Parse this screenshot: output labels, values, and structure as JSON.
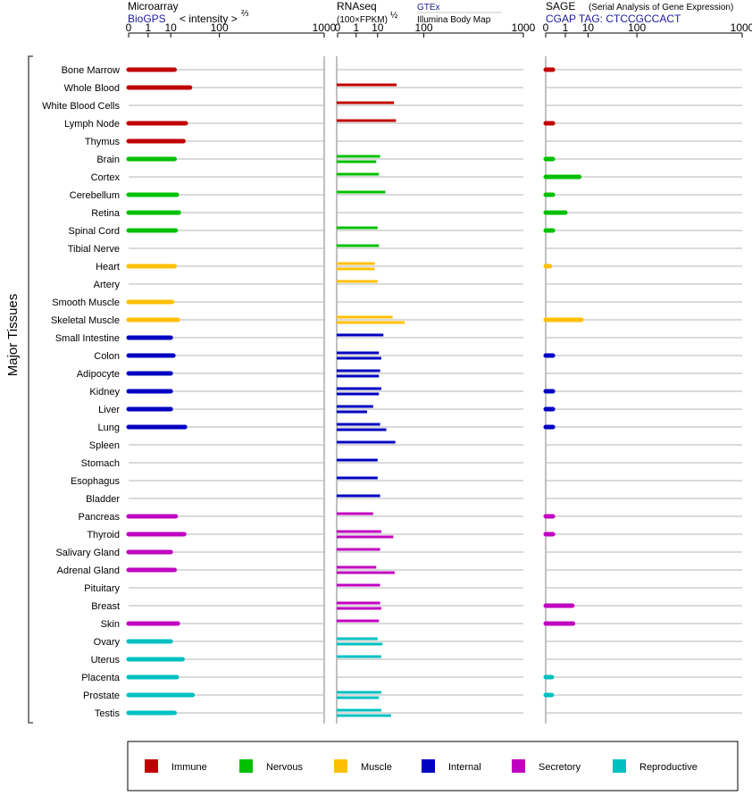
{
  "chart_data": {
    "type": "bar",
    "y_axis_title": "Major Tissues",
    "scale_note": "power scale; plotted position proportional to value^(1/3)",
    "axis_ticks": [
      0,
      1,
      10,
      100,
      1000
    ],
    "categories": [
      "Bone Marrow",
      "Whole Blood",
      "White Blood Cells",
      "Lymph Node",
      "Thymus",
      "Brain",
      "Cortex",
      "Cerebellum",
      "Retina",
      "Spinal Cord",
      "Tibial Nerve",
      "Heart",
      "Artery",
      "Smooth Muscle",
      "Skeletal Muscle",
      "Small Intestine",
      "Colon",
      "Adipocyte",
      "Kidney",
      "Liver",
      "Lung",
      "Spleen",
      "Stomach",
      "Esophagus",
      "Bladder",
      "Pancreas",
      "Thyroid",
      "Salivary Gland",
      "Adrenal Gland",
      "Pituitary",
      "Breast",
      "Skin",
      "Ovary",
      "Uterus",
      "Placenta",
      "Prostate",
      "Testis"
    ],
    "groups": [
      "Immune",
      "Immune",
      "Immune",
      "Immune",
      "Immune",
      "Nervous",
      "Nervous",
      "Nervous",
      "Nervous",
      "Nervous",
      "Nervous",
      "Muscle",
      "Muscle",
      "Muscle",
      "Muscle",
      "Internal",
      "Internal",
      "Internal",
      "Internal",
      "Internal",
      "Internal",
      "Internal",
      "Internal",
      "Internal",
      "Internal",
      "Secretory",
      "Secretory",
      "Secretory",
      "Secretory",
      "Secretory",
      "Secretory",
      "Secretory",
      "Reproductive",
      "Reproductive",
      "Reproductive",
      "Reproductive",
      "Reproductive"
    ],
    "legend": [
      {
        "name": "Immune",
        "color": "#c00000"
      },
      {
        "name": "Nervous",
        "color": "#00c000"
      },
      {
        "name": "Muscle",
        "color": "#ffc000"
      },
      {
        "name": "Internal",
        "color": "#0000c0"
      },
      {
        "name": "Secretory",
        "color": "#c000c0"
      },
      {
        "name": "Reproductive",
        "color": "#00c0c0"
      }
    ],
    "panels": [
      {
        "key": "microarray",
        "title": "Microarray",
        "subtitle": "BioGPS",
        "note": "< intensity >",
        "note_exp": "⅔",
        "series": [
          {
            "source": "BioGPS",
            "values": [
              13,
              31,
              null,
              25,
              22,
              13,
              null,
              15,
              17,
              14,
              null,
              13,
              null,
              11,
              16,
              10,
              12,
              10,
              10,
              10,
              24,
              null,
              null,
              null,
              null,
              14,
              23,
              10,
              13,
              null,
              null,
              16,
              10,
              21,
              15,
              35,
              13
            ]
          }
        ]
      },
      {
        "key": "rnaseq",
        "title": "RNAseq",
        "note": "(100×FPKM)",
        "note_exp": "½",
        "sources": [
          "GTEx",
          "Illumina Body Map"
        ],
        "series": [
          {
            "source": "GTEx",
            "values": [
              null,
              32,
              28,
              31,
              null,
              12,
              11,
              17,
              null,
              10,
              11,
              8,
              10,
              null,
              26,
              15,
              11,
              12,
              13,
              7,
              12,
              30,
              10,
              10,
              12,
              7,
              13,
              12,
              9,
              12,
              12,
              11,
              10,
              13,
              null,
              13,
              13
            ]
          },
          {
            "source": "Illumina Body Map",
            "values": [
              null,
              null,
              null,
              null,
              null,
              9,
              null,
              null,
              null,
              null,
              null,
              8,
              null,
              null,
              47,
              null,
              13,
              11,
              11,
              4,
              18,
              null,
              null,
              null,
              null,
              null,
              27,
              null,
              29,
              null,
              13,
              null,
              14,
              null,
              null,
              11,
              24
            ]
          }
        ]
      },
      {
        "key": "sage",
        "title": "SAGE",
        "note": "(Serial Analysis of Gene Expression)",
        "subtitle": "CGAP TAG: CTCCGCCACT",
        "series": [
          {
            "source": "CGAP",
            "values": [
              0.05,
              null,
              null,
              0.05,
              null,
              0.05,
              5,
              0.05,
              1,
              0.05,
              null,
              0.01,
              null,
              null,
              6,
              null,
              0.05,
              null,
              0.05,
              0.05,
              0.05,
              null,
              null,
              null,
              null,
              0.05,
              0.05,
              null,
              null,
              null,
              2.5,
              2.7,
              null,
              null,
              0.03,
              0.03,
              null
            ]
          }
        ]
      }
    ]
  }
}
